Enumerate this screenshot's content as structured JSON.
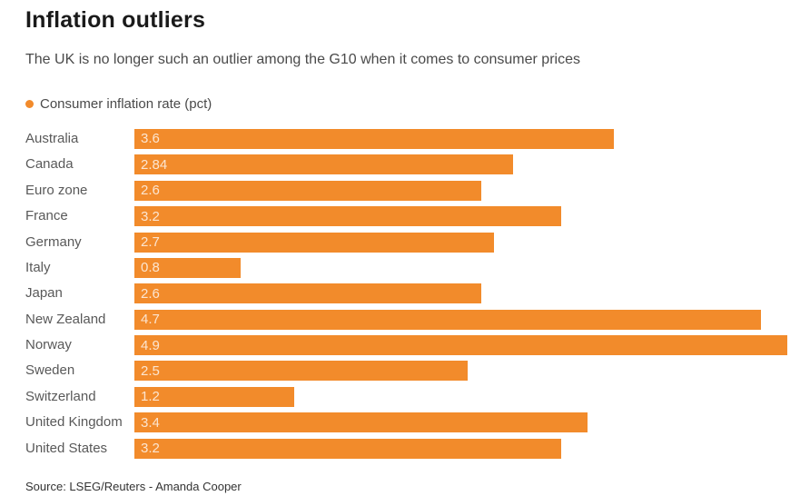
{
  "header": {
    "title": "Inflation outliers",
    "subtitle": "The UK is no longer such an outlier among the G10 when it comes to consumer prices"
  },
  "legend": {
    "label": "Consumer inflation rate (pct)",
    "dot_color": "#F28B2B"
  },
  "chart_data": {
    "type": "bar",
    "orientation": "horizontal",
    "title": "Inflation outliers",
    "subtitle": "The UK is no longer such an outlier among the G10 when it comes to consumer prices",
    "series_label": "Consumer inflation rate (pct)",
    "categories": [
      "Australia",
      "Canada",
      "Euro zone",
      "France",
      "Germany",
      "Italy",
      "Japan",
      "New Zealand",
      "Norway",
      "Sweden",
      "Switzerland",
      "United Kingdom",
      "United States"
    ],
    "values": [
      3.6,
      2.84,
      2.6,
      3.2,
      2.7,
      0.8,
      2.6,
      4.7,
      4.9,
      2.5,
      1.2,
      3.4,
      3.2
    ],
    "value_labels": [
      "3.6",
      "2.84",
      "2.6",
      "3.2",
      "2.7",
      "0.8",
      "2.6",
      "4.7",
      "4.9",
      "2.5",
      "1.2",
      "3.4",
      "3.2"
    ],
    "xlim": [
      0,
      4.9
    ],
    "bar_color": "#F28B2B",
    "value_label_position": "inside-left",
    "grid": false,
    "legend_position": "top-left"
  },
  "footer": {
    "source": "Source: LSEG/Reuters - Amanda Cooper"
  }
}
